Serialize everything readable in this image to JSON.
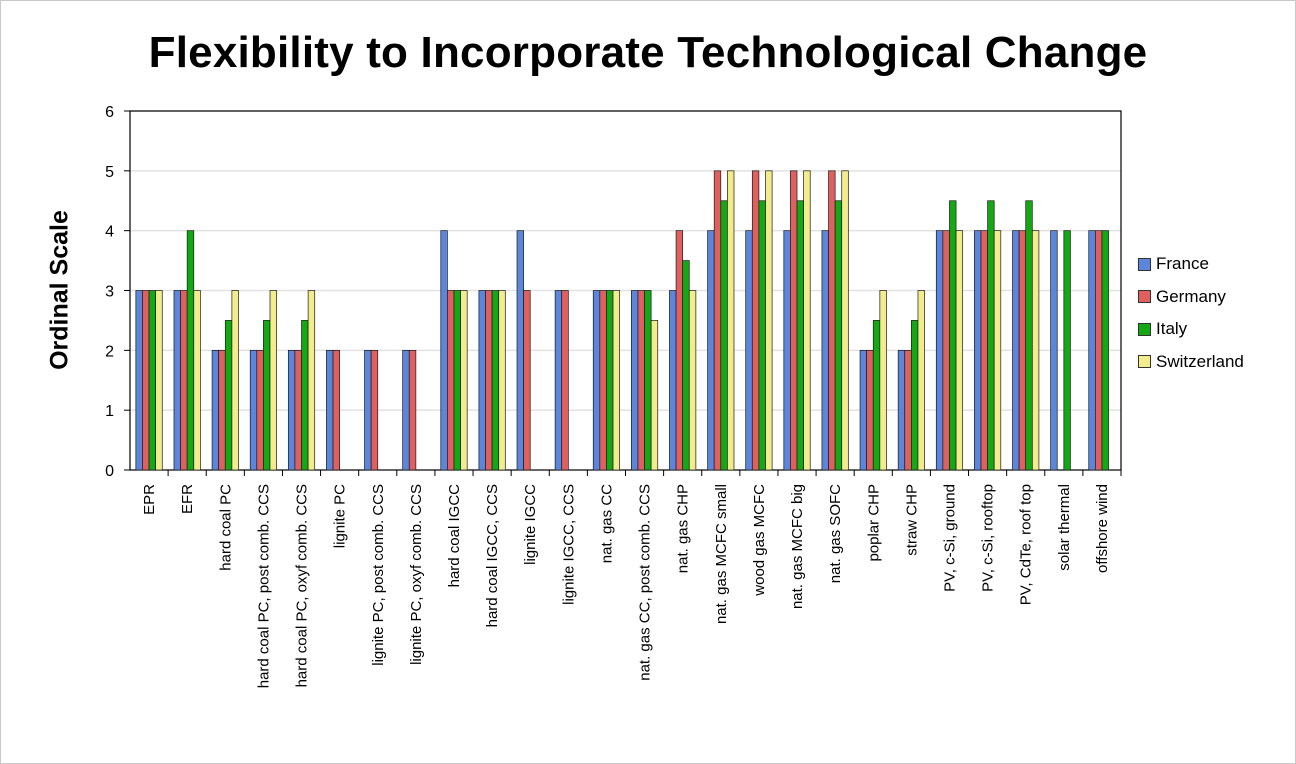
{
  "chart_data": {
    "type": "bar",
    "title": "Flexibility to Incorporate Technological Change",
    "xlabel": "",
    "ylabel": "Ordinal Scale",
    "ylim": [
      0,
      6
    ],
    "yticks": [
      "0",
      "1",
      "2",
      "3",
      "4",
      "5",
      "6"
    ],
    "grid": true,
    "legend_position": "right",
    "categories": [
      "EPR",
      "EFR",
      "hard coal PC",
      "hard coal PC, post comb. CCS",
      "hard coal PC, oxyf comb. CCS",
      "lignite PC",
      "lignite PC, post comb. CCS",
      "lignite PC, oxyf comb. CCS",
      "hard coal IGCC",
      "hard coal IGCC, CCS",
      "lignite IGCC",
      "lignite IGCC, CCS",
      "nat. gas CC",
      "nat. gas CC, post comb. CCS",
      "nat. gas CHP",
      "nat. gas MCFC small",
      "wood gas MCFC",
      "nat. gas MCFC big",
      "nat. gas SOFC",
      "poplar CHP",
      "straw CHP",
      "PV, c-Si, ground",
      "PV, c-Si, rooftop",
      "PV, CdTe, roof top",
      "solar thermal",
      "offshore wind"
    ],
    "series": [
      {
        "name": "France",
        "color": "#5b86dc",
        "values": [
          3,
          3,
          2,
          2,
          2,
          2,
          2,
          2,
          4,
          3,
          4,
          3,
          3,
          3,
          3,
          4,
          4,
          4,
          4,
          2,
          2,
          4,
          4,
          4,
          4,
          4
        ]
      },
      {
        "name": "Germany",
        "color": "#e06060",
        "values": [
          3,
          3,
          2,
          2,
          2,
          2,
          2,
          2,
          3,
          3,
          3,
          3,
          3,
          3,
          4,
          5,
          5,
          5,
          5,
          2,
          2,
          4,
          4,
          4,
          null,
          4
        ]
      },
      {
        "name": "Italy",
        "color": "#14a814",
        "values": [
          3,
          4,
          2.5,
          2.5,
          2.5,
          null,
          null,
          null,
          3,
          3,
          null,
          null,
          3,
          3,
          3.5,
          4.5,
          4.5,
          4.5,
          4.5,
          2.5,
          2.5,
          4.5,
          4.5,
          4.5,
          4,
          4
        ]
      },
      {
        "name": "Switzerland",
        "color": "#f2ec8c",
        "values": [
          3,
          3,
          3,
          3,
          3,
          null,
          null,
          null,
          3,
          3,
          null,
          null,
          3,
          2.5,
          3,
          5,
          5,
          5,
          5,
          3,
          3,
          4,
          4,
          4,
          null,
          null
        ]
      }
    ]
  }
}
